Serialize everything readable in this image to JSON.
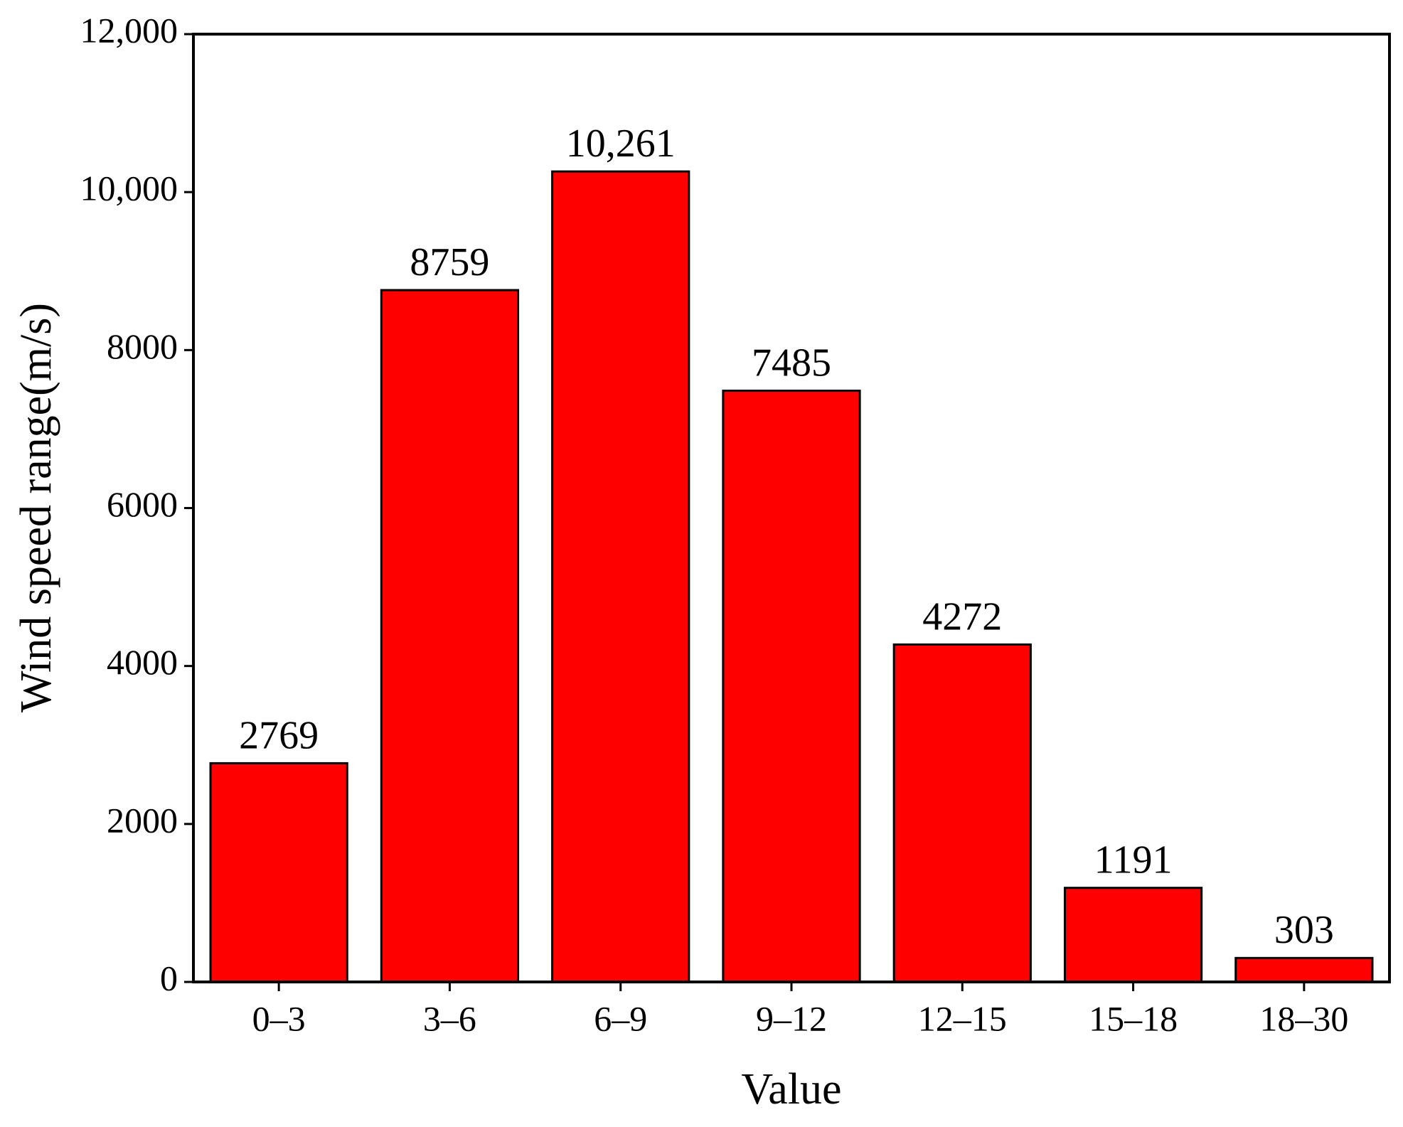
{
  "chart_data": {
    "type": "bar",
    "x_label": "Value",
    "y_label": "Wind speed range(m/s)",
    "categories": [
      "0–3",
      "3–6",
      "6–9",
      "9–12",
      "12–15",
      "15–18",
      "18–30"
    ],
    "values": [
      2769,
      8759,
      10261,
      7485,
      4272,
      1191,
      303
    ],
    "value_labels": [
      "2769",
      "8759",
      "10,261",
      "7485",
      "4272",
      "1191",
      "303"
    ],
    "color": "#ff0000",
    "ylim": [
      0,
      12000
    ],
    "yticks": [
      0,
      2000,
      4000,
      6000,
      8000,
      {
        "value": 10000,
        "label": "10,000"
      },
      {
        "value": 12000,
        "label": "12,000"
      }
    ],
    "grid": false
  }
}
